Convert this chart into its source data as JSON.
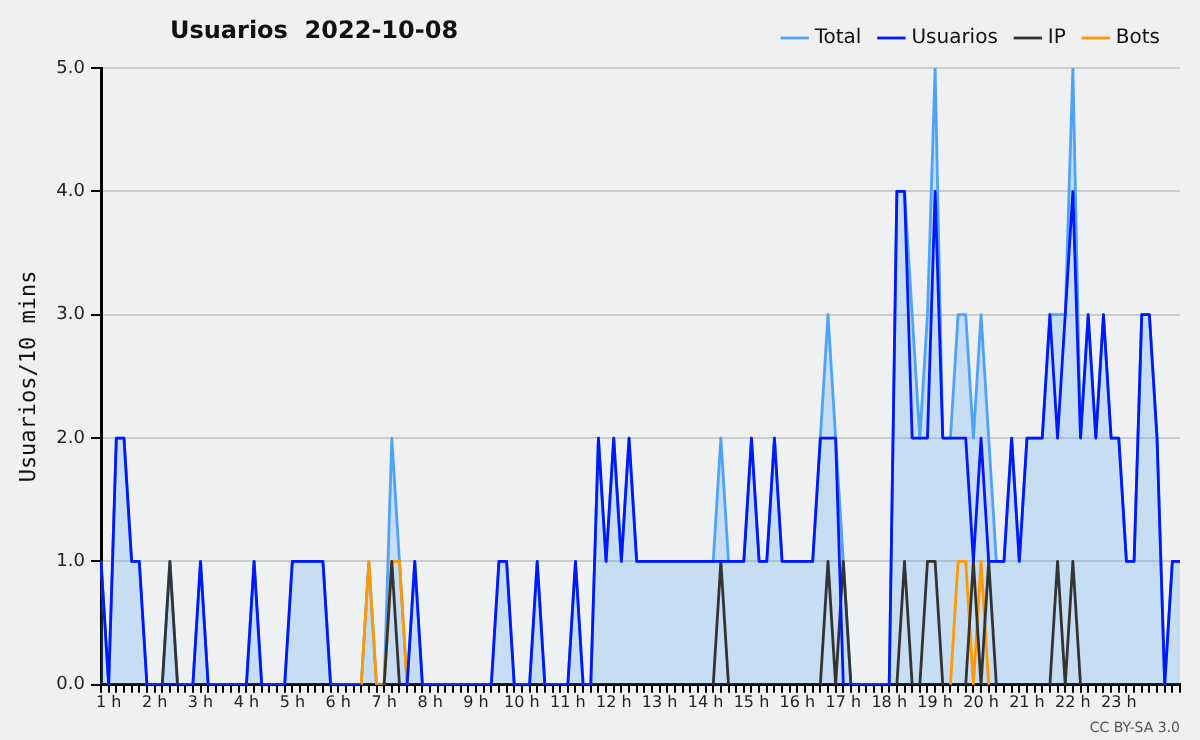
{
  "chart_data": {
    "type": "line",
    "title": "Usuarios  2022-10-08",
    "ylabel": "Usuarios/10 mins",
    "annotations": [
      "CC BY-SA 3.0"
    ],
    "categories": [
      null,
      "1 h",
      null,
      null,
      null,
      null,
      null,
      "2 h",
      null,
      null,
      null,
      null,
      null,
      "3 h",
      null,
      null,
      null,
      null,
      null,
      "4 h",
      null,
      null,
      null,
      null,
      null,
      "5 h",
      null,
      null,
      null,
      null,
      null,
      "6 h",
      null,
      null,
      null,
      null,
      null,
      "7 h",
      null,
      null,
      null,
      null,
      null,
      "8 h",
      null,
      null,
      null,
      null,
      null,
      "9 h",
      null,
      null,
      null,
      null,
      null,
      "10 h",
      null,
      null,
      null,
      null,
      null,
      "11 h",
      null,
      null,
      null,
      null,
      null,
      "12 h",
      null,
      null,
      null,
      null,
      null,
      "13 h",
      null,
      null,
      null,
      null,
      null,
      "14 h",
      null,
      null,
      null,
      null,
      null,
      "15 h",
      null,
      null,
      null,
      null,
      null,
      "16 h",
      null,
      null,
      null,
      null,
      null,
      "17 h",
      null,
      null,
      null,
      null,
      null,
      "18 h",
      null,
      null,
      null,
      null,
      null,
      "19 h",
      null,
      null,
      null,
      null,
      null,
      "20 h",
      null,
      null,
      null,
      null,
      null,
      "21 h",
      null,
      null,
      null,
      null,
      null,
      "22 h",
      null,
      null,
      null,
      null,
      null,
      "23 h",
      null,
      null,
      null,
      null,
      null,
      null,
      null,
      null
    ],
    "series": [
      {
        "name": "Total",
        "type": "area",
        "color": "#4fa3f7",
        "values": [
          1,
          0,
          2,
          2,
          1,
          1,
          0,
          0,
          0,
          1,
          0,
          0,
          0,
          1,
          0,
          0,
          0,
          0,
          0,
          0,
          1,
          0,
          0,
          0,
          0,
          1,
          1,
          1,
          1,
          1,
          0,
          0,
          0,
          0,
          0,
          1,
          0,
          0,
          2,
          1,
          0,
          1,
          0,
          0,
          0,
          0,
          0,
          0,
          0,
          0,
          0,
          0,
          1,
          1,
          0,
          0,
          0,
          1,
          0,
          0,
          0,
          0,
          1,
          0,
          0,
          2,
          1,
          2,
          1,
          2,
          1,
          1,
          1,
          1,
          1,
          1,
          1,
          1,
          1,
          1,
          1,
          2,
          1,
          1,
          1,
          2,
          1,
          1,
          2,
          1,
          1,
          1,
          1,
          1,
          2,
          3,
          2,
          1,
          0,
          0,
          0,
          0,
          0,
          0,
          4,
          4,
          3,
          2,
          3,
          5,
          2,
          2,
          3,
          3,
          2,
          3,
          2,
          1,
          1,
          2,
          1,
          2,
          2,
          2,
          3,
          3,
          3,
          5,
          2,
          3,
          2,
          3,
          2,
          2,
          1,
          1,
          3,
          3,
          2,
          0,
          1,
          1
        ]
      },
      {
        "name": "Usuarios",
        "color": "#0018ff",
        "values": [
          1,
          0,
          2,
          2,
          1,
          1,
          0,
          0,
          0,
          0,
          0,
          0,
          0,
          1,
          0,
          0,
          0,
          0,
          0,
          0,
          1,
          0,
          0,
          0,
          0,
          1,
          1,
          1,
          1,
          1,
          0,
          0,
          0,
          0,
          0,
          null,
          null,
          null,
          null,
          0,
          0,
          1,
          0,
          0,
          0,
          0,
          0,
          0,
          0,
          0,
          0,
          0,
          1,
          1,
          0,
          0,
          0,
          1,
          0,
          0,
          0,
          0,
          1,
          0,
          0,
          2,
          1,
          2,
          1,
          2,
          1,
          1,
          1,
          1,
          1,
          1,
          1,
          1,
          1,
          1,
          1,
          1,
          1,
          1,
          1,
          2,
          1,
          1,
          2,
          1,
          1,
          1,
          1,
          1,
          2,
          2,
          2,
          0,
          0,
          0,
          0,
          0,
          0,
          0,
          4,
          4,
          2,
          2,
          2,
          4,
          2,
          2,
          2,
          2,
          1,
          2,
          1,
          1,
          1,
          2,
          1,
          2,
          2,
          2,
          3,
          2,
          3,
          4,
          2,
          3,
          2,
          3,
          2,
          2,
          1,
          1,
          3,
          3,
          2,
          0,
          1,
          1
        ]
      },
      {
        "name": "IP",
        "color": "#333333",
        "values": [
          null,
          null,
          null,
          null,
          null,
          null,
          null,
          null,
          0,
          1,
          0,
          null,
          null,
          null,
          null,
          null,
          null,
          null,
          null,
          null,
          null,
          null,
          null,
          null,
          null,
          null,
          null,
          null,
          null,
          null,
          null,
          null,
          null,
          null,
          null,
          null,
          null,
          0,
          1,
          0,
          null,
          null,
          null,
          null,
          null,
          null,
          null,
          null,
          null,
          null,
          null,
          null,
          null,
          null,
          null,
          null,
          null,
          null,
          null,
          null,
          null,
          null,
          null,
          null,
          null,
          null,
          null,
          null,
          null,
          null,
          null,
          null,
          null,
          null,
          null,
          null,
          null,
          null,
          null,
          null,
          0,
          1,
          0,
          null,
          null,
          null,
          null,
          null,
          null,
          null,
          null,
          null,
          null,
          null,
          0,
          1,
          0,
          1,
          0,
          null,
          null,
          null,
          null,
          null,
          0,
          1,
          0,
          0,
          1,
          1,
          0,
          null,
          null,
          0,
          1,
          0,
          1,
          0,
          null,
          null,
          null,
          null,
          null,
          null,
          0,
          1,
          0,
          1,
          0,
          null,
          null,
          null,
          null,
          null,
          null,
          null,
          null,
          null,
          null,
          null,
          null,
          null
        ]
      },
      {
        "name": "Bots",
        "color": "#ff9900",
        "values": [
          null,
          null,
          null,
          null,
          null,
          null,
          null,
          null,
          null,
          null,
          null,
          null,
          null,
          null,
          null,
          null,
          null,
          null,
          null,
          null,
          null,
          null,
          null,
          null,
          null,
          null,
          null,
          null,
          null,
          null,
          null,
          null,
          null,
          null,
          0,
          1,
          0,
          0,
          1,
          1,
          0,
          null,
          null,
          null,
          null,
          null,
          null,
          null,
          null,
          null,
          null,
          null,
          null,
          null,
          null,
          null,
          null,
          null,
          null,
          null,
          null,
          null,
          null,
          null,
          null,
          null,
          null,
          null,
          null,
          null,
          null,
          null,
          null,
          null,
          null,
          null,
          null,
          null,
          null,
          null,
          null,
          null,
          null,
          null,
          null,
          null,
          null,
          null,
          null,
          null,
          null,
          null,
          null,
          null,
          null,
          null,
          null,
          null,
          null,
          null,
          null,
          null,
          null,
          null,
          null,
          null,
          null,
          null,
          null,
          null,
          null,
          0,
          1,
          1,
          0,
          1,
          0,
          null,
          null,
          null,
          null,
          null,
          null,
          null,
          null,
          null,
          null,
          null,
          null,
          null,
          null,
          null,
          null,
          null,
          null,
          null,
          null,
          null,
          null,
          null,
          null,
          null
        ]
      }
    ],
    "ylim": [
      0,
      5
    ],
    "yticks": [
      {
        "value": 0,
        "label": "0.0"
      },
      {
        "value": 1,
        "label": "1.0"
      },
      {
        "value": 2,
        "label": "2.0"
      },
      {
        "value": 3,
        "label": "3.0"
      },
      {
        "value": 4,
        "label": "4.0"
      },
      {
        "value": 5,
        "label": "5.0"
      }
    ],
    "grid": "y",
    "legend": "top right",
    "marker": "none",
    "line_style": "solid"
  }
}
